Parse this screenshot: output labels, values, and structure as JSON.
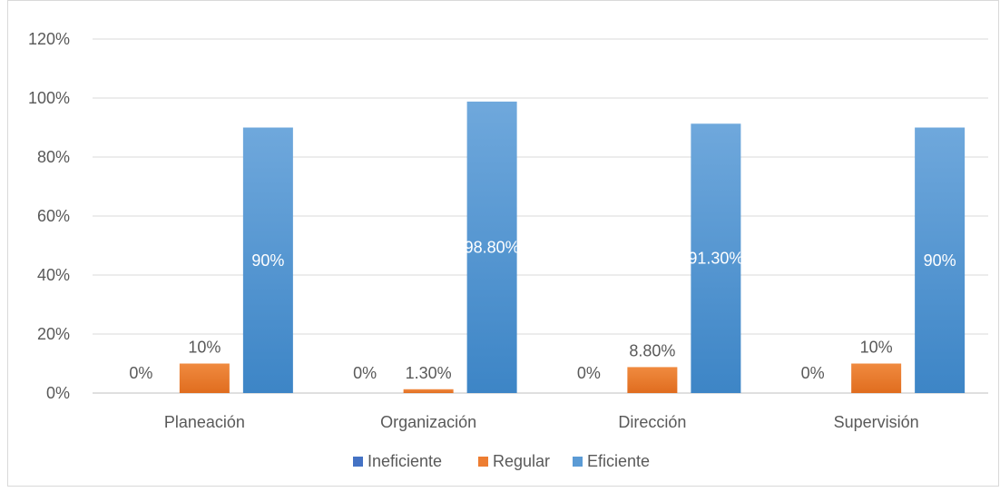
{
  "chart_data": {
    "type": "bar",
    "categories": [
      "Planeación",
      "Organización",
      "Dirección",
      "Supervisión"
    ],
    "series": [
      {
        "name": "Ineficiente",
        "color": "#4472c4",
        "values": [
          0,
          0,
          0,
          0
        ],
        "labels": [
          "0%",
          "0%",
          "0%",
          "0%"
        ]
      },
      {
        "name": "Regular",
        "color": "#ed7d31",
        "values": [
          10,
          1.3,
          8.8,
          10
        ],
        "labels": [
          "10%",
          "1.30%",
          "8.80%",
          "10%"
        ]
      },
      {
        "name": "Eficiente",
        "color": "#5b9bd5",
        "values": [
          90,
          98.8,
          91.3,
          90
        ],
        "labels": [
          "90%",
          "98.80%",
          "91.30%",
          "90%"
        ]
      }
    ],
    "yticks": [
      "0%",
      "20%",
      "40%",
      "60%",
      "80%",
      "100%",
      "120%"
    ],
    "ylim": [
      0,
      120
    ],
    "grid": true,
    "legend_position": "bottom"
  }
}
